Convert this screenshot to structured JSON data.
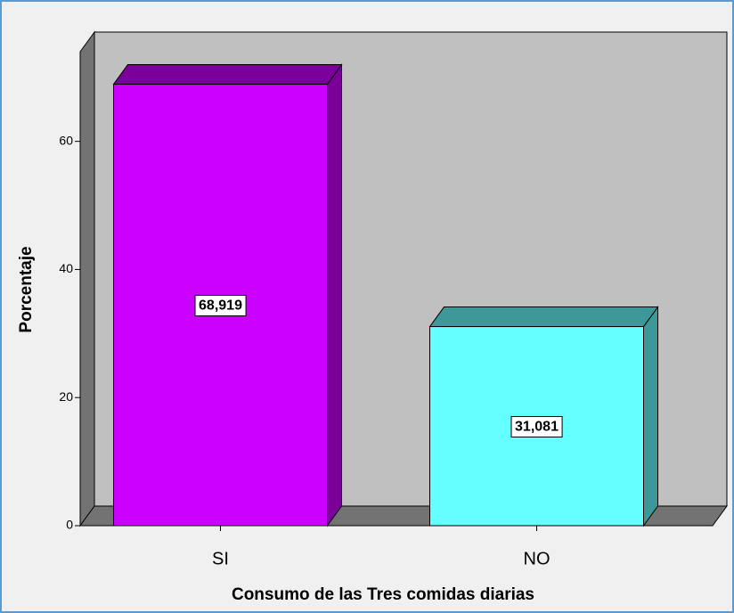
{
  "chart_data": {
    "type": "bar3d",
    "x_label": "Consumo de las Tres comidas diarias",
    "y_label": "Porcentaje",
    "categories": [
      "SI",
      "NO"
    ],
    "values": [
      68.919,
      31.081
    ],
    "value_labels": [
      "68,919",
      "31,081"
    ],
    "colors": [
      "#cc00ff",
      "#66ffff"
    ],
    "side_colors": [
      "#7a0099",
      "#3d9999"
    ],
    "ylim": [
      0,
      74
    ],
    "yticks": [
      0,
      20,
      40,
      60
    ]
  }
}
